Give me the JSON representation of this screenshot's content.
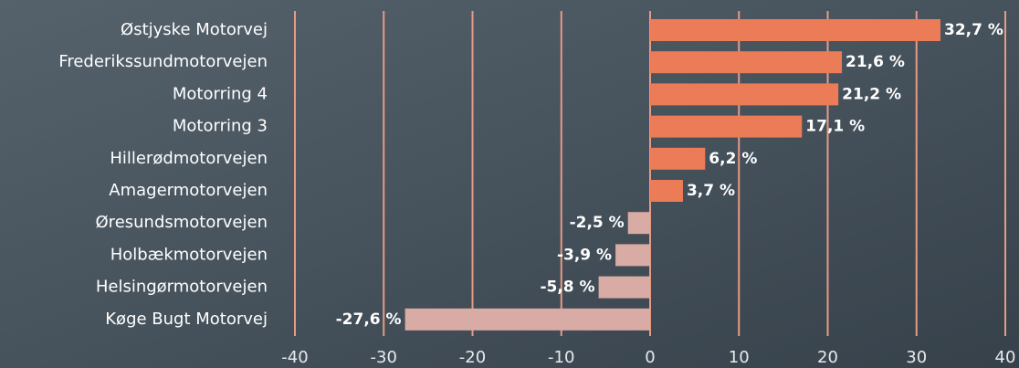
{
  "chart_data": {
    "type": "bar",
    "orientation": "horizontal",
    "categories": [
      "Østjyske Motorvej",
      "Frederikssundmotorvejen",
      "Motorring 4",
      "Motorring 3",
      "Hillerødmotorvejen",
      "Amagermotorvejen",
      "Øresundsmotorvejen",
      "Holbækmotorvejen",
      "Helsingørmotorvejen",
      "Køge Bugt Motorvej"
    ],
    "values": [
      32.7,
      21.6,
      21.2,
      17.1,
      6.2,
      3.7,
      -2.5,
      -3.9,
      -5.8,
      -27.6
    ],
    "value_labels": [
      "32,7 %",
      "21,6 %",
      "21,2 %",
      "17,1 %",
      "6,2 %",
      "3,7 %",
      "-2,5 %",
      "-3,9 %",
      "-5,8 %",
      "-27,6 %"
    ],
    "positive_color": "#ec7b57",
    "negative_color": "#d8aba4",
    "grid_color": "#e79a86",
    "xlim": [
      -40,
      40
    ],
    "xticks": [
      -40,
      -30,
      -20,
      -10,
      0,
      10,
      20,
      30,
      40
    ],
    "grid": true
  }
}
